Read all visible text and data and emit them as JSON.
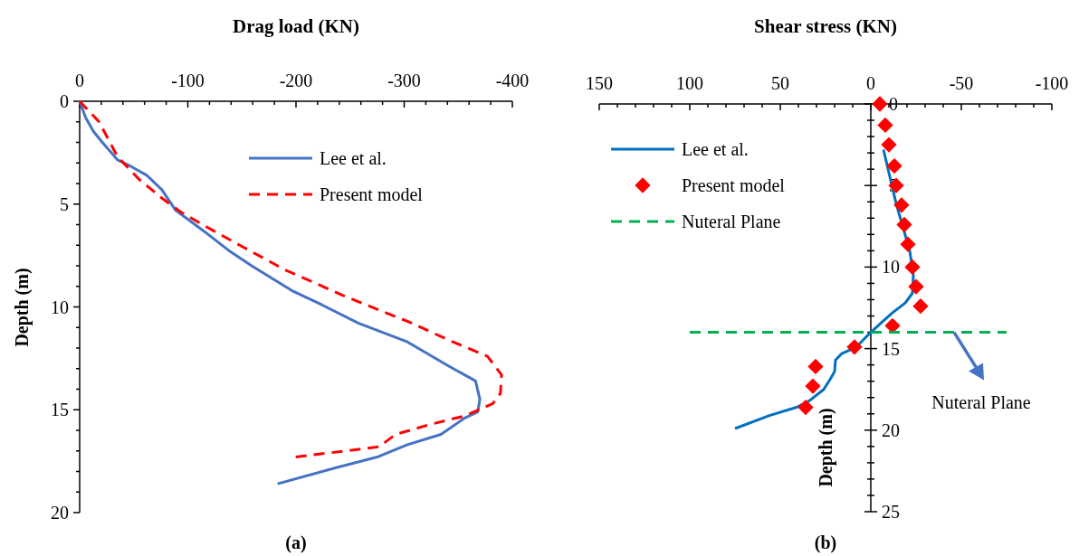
{
  "chart_data": [
    {
      "type": "line",
      "xlabel": "Drag load (KN)",
      "ylabel": "Depth (m)",
      "xlim": [
        0,
        -400
      ],
      "ylim": [
        20,
        0
      ],
      "xticks": [
        0,
        {
          "value": -20,
          "label": null
        },
        {
          "value": -40,
          "label": null
        },
        {
          "value": -60,
          "label": null
        },
        {
          "value": -80,
          "label": null
        },
        -100,
        {
          "value": -120,
          "label": null
        },
        {
          "value": -140,
          "label": null
        },
        {
          "value": -160,
          "label": null
        },
        {
          "value": -180,
          "label": null
        },
        -200,
        {
          "value": -220,
          "label": null
        },
        {
          "value": -240,
          "label": null
        },
        {
          "value": -260,
          "label": null
        },
        {
          "value": -280,
          "label": null
        },
        -300,
        {
          "value": -320,
          "label": null
        },
        {
          "value": -340,
          "label": null
        },
        {
          "value": -360,
          "label": null
        },
        {
          "value": -380,
          "label": null
        },
        -400
      ],
      "yticks": [
        0,
        {
          "value": 1,
          "label": null
        },
        {
          "value": 2,
          "label": null
        },
        {
          "value": 3,
          "label": null
        },
        {
          "value": 4,
          "label": null
        },
        5,
        {
          "value": 6,
          "label": null
        },
        {
          "value": 7,
          "label": null
        },
        {
          "value": 8,
          "label": null
        },
        {
          "value": 9,
          "label": null
        },
        10,
        {
          "value": 11,
          "label": null
        },
        {
          "value": 12,
          "label": null
        },
        {
          "value": 13,
          "label": null
        },
        {
          "value": 14,
          "label": null
        },
        15,
        {
          "value": 16,
          "label": null
        },
        {
          "value": 17,
          "label": null
        },
        {
          "value": 18,
          "label": null
        },
        {
          "value": 19,
          "label": null
        },
        20
      ],
      "grid": false,
      "legend": "top right",
      "marker": "none",
      "annotations": [
        "(a)"
      ],
      "series": [
        {
          "name": "Lee et al.",
          "color": "#4472c4",
          "line_style": "solid",
          "x": [
            0,
            -5.6,
            -12.7,
            -21,
            -35,
            -46.5,
            -62,
            -76,
            -88.7,
            -117,
            -139,
            -159,
            -196,
            -224,
            -258,
            -303,
            -342,
            -366,
            -370,
            -368,
            -356,
            -334,
            -303,
            -275,
            -238,
            -183
          ],
          "values": [
            0,
            0.8,
            1.46,
            2,
            2.85,
            3.14,
            3.6,
            4.3,
            5.3,
            6.4,
            7.3,
            8,
            9.2,
            9.9,
            10.8,
            11.7,
            12.9,
            13.6,
            14.5,
            15.1,
            15.4,
            16.2,
            16.7,
            17.3,
            17.8,
            18.6
          ]
        },
        {
          "name": "Present model",
          "color": "#ff0000",
          "line_style": "dashed",
          "x": [
            0,
            -18,
            -35,
            -55,
            -77,
            -94,
            -117,
            -148,
            -190,
            -246,
            -303,
            -345,
            -377,
            -390,
            -389,
            -382,
            -356,
            -325,
            -292,
            -277,
            -246,
            -199
          ],
          "values": [
            0,
            1,
            2.7,
            3.8,
            4.75,
            5.4,
            6.1,
            7,
            8.2,
            9.5,
            10.7,
            11.7,
            12.4,
            13.3,
            14.2,
            14.7,
            15.3,
            15.7,
            16.2,
            16.8,
            17,
            17.3
          ]
        }
      ]
    },
    {
      "type": "line",
      "xlabel": "Shear stress (KN)",
      "ylabel": "Depth (m)",
      "xlim": [
        150,
        -100
      ],
      "ylim": [
        25,
        0
      ],
      "xticks": [
        150,
        {
          "value": 140,
          "label": null
        },
        {
          "value": 130,
          "label": null
        },
        {
          "value": 120,
          "label": null
        },
        {
          "value": 110,
          "label": null
        },
        100,
        {
          "value": 90,
          "label": null
        },
        {
          "value": 80,
          "label": null
        },
        {
          "value": 70,
          "label": null
        },
        {
          "value": 60,
          "label": null
        },
        50,
        {
          "value": 40,
          "label": null
        },
        {
          "value": 30,
          "label": null
        },
        {
          "value": 20,
          "label": null
        },
        {
          "value": 10,
          "label": null
        },
        0,
        {
          "value": -10,
          "label": null
        },
        {
          "value": -20,
          "label": null
        },
        {
          "value": -30,
          "label": null
        },
        {
          "value": -40,
          "label": null
        },
        -50,
        {
          "value": -60,
          "label": null
        },
        {
          "value": -70,
          "label": null
        },
        {
          "value": -80,
          "label": null
        },
        {
          "value": -90,
          "label": null
        },
        -100
      ],
      "yticks": [
        0,
        {
          "value": 1,
          "label": null
        },
        {
          "value": 2,
          "label": null
        },
        {
          "value": 3,
          "label": null
        },
        {
          "value": 4,
          "label": null
        },
        5,
        {
          "value": 6,
          "label": null
        },
        {
          "value": 7,
          "label": null
        },
        {
          "value": 8,
          "label": null
        },
        {
          "value": 9,
          "label": null
        },
        10,
        {
          "value": 11,
          "label": null
        },
        {
          "value": 12,
          "label": null
        },
        {
          "value": 13,
          "label": null
        },
        {
          "value": 14,
          "label": null
        },
        15,
        {
          "value": 16,
          "label": null
        },
        {
          "value": 17,
          "label": null
        },
        {
          "value": 18,
          "label": null
        },
        {
          "value": 19,
          "label": null
        },
        20,
        {
          "value": 21,
          "label": null
        },
        {
          "value": 22,
          "label": null
        },
        {
          "value": 23,
          "label": null
        },
        {
          "value": 24,
          "label": null
        },
        25
      ],
      "grid": false,
      "legend": "top left",
      "annotations": [
        "(b)",
        {
          "text": "Nuteral Plane",
          "x": -46,
          "y": 14
        }
      ],
      "series": [
        {
          "name": "Lee et al.",
          "color": "#0070c0",
          "line_style": "solid",
          "marker": "none",
          "x": [
            -7,
            -14,
            -21.5,
            -23.5,
            -23,
            -19,
            -12,
            -6,
            0,
            8,
            16,
            19.5,
            20,
            22,
            26,
            34,
            41,
            56,
            75
          ],
          "values": [
            2.8,
            6.1,
            9,
            10.5,
            11.6,
            12.2,
            12.8,
            13.4,
            14,
            14.9,
            15.3,
            15.7,
            16.4,
            16.8,
            17.5,
            18.2,
            18.6,
            19.1,
            19.9
          ]
        },
        {
          "name": "Present model",
          "type": "scatter",
          "color": "#ff0000",
          "marker": "diamond",
          "x": [
            -5,
            -8,
            -10,
            -13,
            -14,
            -17,
            -18.5,
            -20.5,
            -23,
            -25,
            -27.5,
            -12,
            9,
            30.5,
            32,
            36
          ],
          "values": [
            0,
            1.3,
            2.5,
            3.8,
            5,
            6.2,
            7.4,
            8.6,
            10,
            11.2,
            12.4,
            13.6,
            14.9,
            16.1,
            17.3,
            18.6
          ]
        },
        {
          "name": "Nuteral Plane",
          "color": "#00b050",
          "line_style": "dashed",
          "marker": "none",
          "x": [
            100,
            -75
          ],
          "values": [
            14,
            14
          ]
        }
      ]
    }
  ]
}
